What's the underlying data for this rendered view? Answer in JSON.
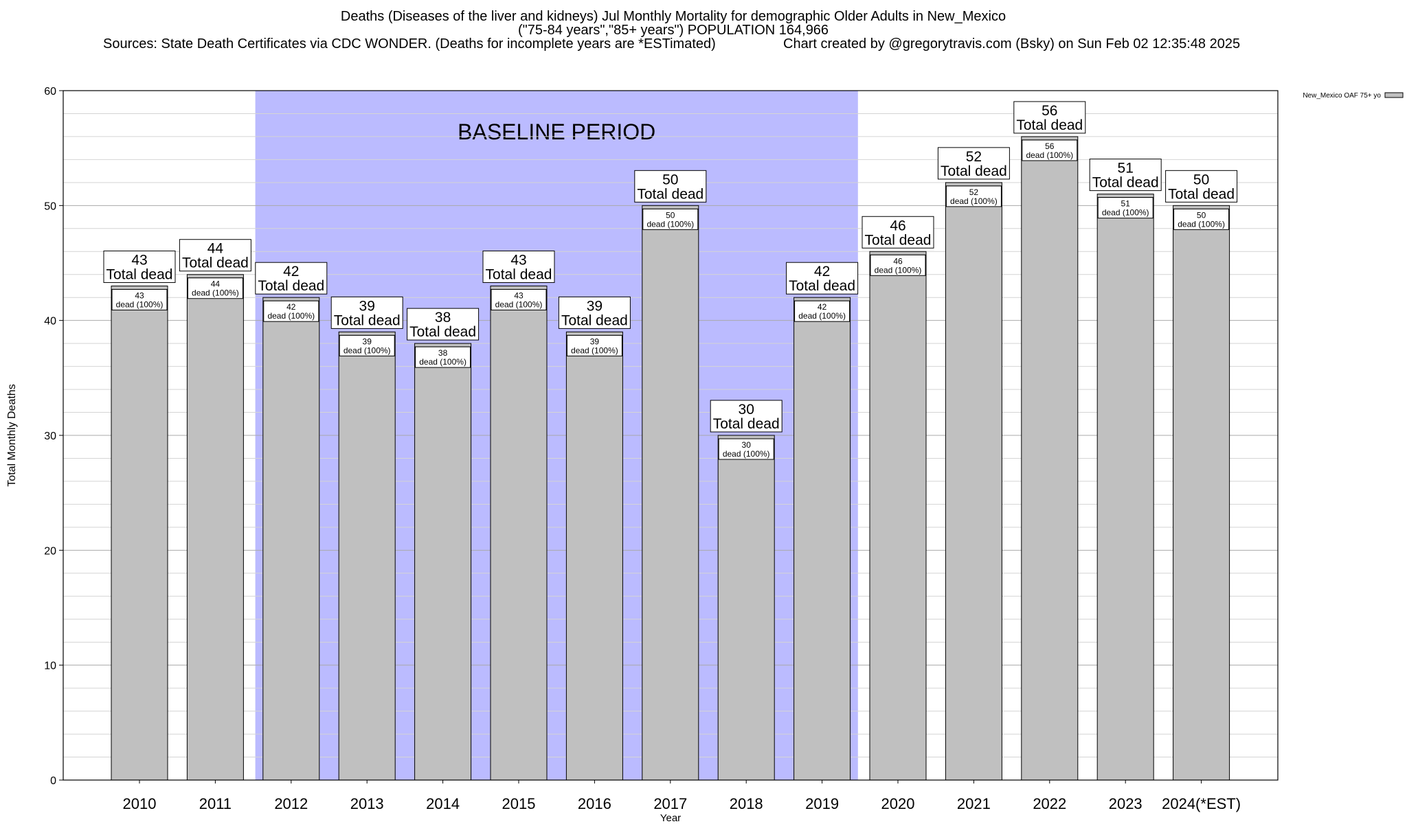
{
  "header": {
    "title": "Deaths (Diseases of the liver and kidneys) Jul Monthly Mortality for demographic Older Adults in New_Mexico",
    "subtitle": "(\"75-84 years\",\"85+ years\") POPULATION 164,966",
    "sources": "Sources: State Death Certificates via CDC WONDER. (Deaths for incomplete years are *ESTimated)",
    "credit": "Chart created by @gregorytravis.com (Bsky) on Sun Feb 02 12:35:48 2025"
  },
  "chart_data": {
    "type": "bar",
    "title": "Deaths (Diseases of the liver and kidneys) Jul Monthly Mortality for demographic Older Adults in New_Mexico",
    "xlabel": "Year",
    "ylabel": "Total Monthly Deaths",
    "ylim": [
      0,
      60
    ],
    "yticks": [
      0,
      10,
      20,
      30,
      40,
      50,
      60
    ],
    "grid": true,
    "legend_position": "top-right",
    "categories": [
      "2010",
      "2011",
      "2012",
      "2013",
      "2014",
      "2015",
      "2016",
      "2017",
      "2018",
      "2019",
      "2020",
      "2021",
      "2022",
      "2023",
      "2024(*EST)"
    ],
    "series": [
      {
        "name": "New_Mexico OAF 75+ yo",
        "values": [
          43,
          44,
          42,
          39,
          38,
          43,
          39,
          50,
          30,
          42,
          46,
          52,
          56,
          51,
          50
        ],
        "color": "#c0c0c0"
      }
    ],
    "bar_label_suffix": "Total dead",
    "inner_label_suffix": "dead (100%)",
    "baseline": {
      "label": "BASELINE PERIOD",
      "start": "2012",
      "end": "2019",
      "color": "#bbbbff"
    }
  }
}
